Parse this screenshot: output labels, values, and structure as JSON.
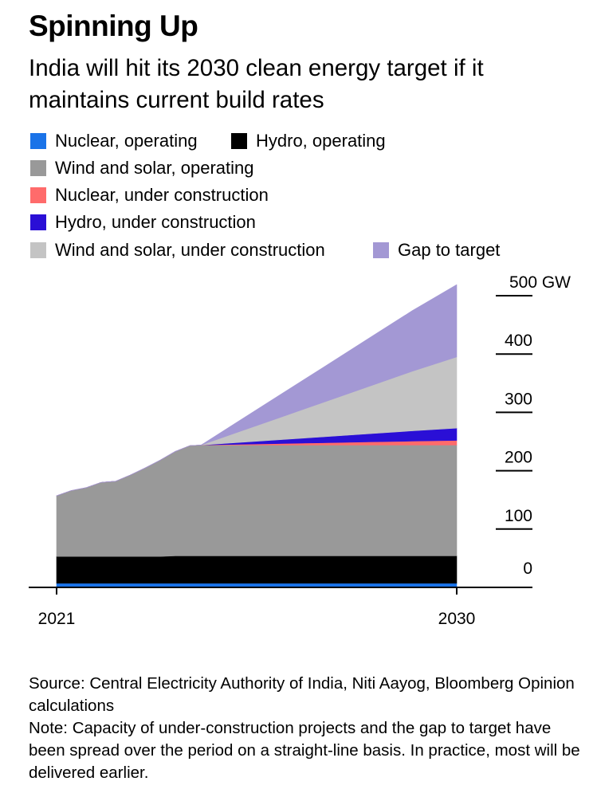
{
  "title": "Spinning Up",
  "subtitle": "India will hit its 2030 clean energy target if it maintains current build rates",
  "colors": {
    "nuclear_operating": "#1a73e8",
    "hydro_operating": "#000000",
    "wind_solar_operating": "#999999",
    "nuclear_under_construction": "#ff6b6b",
    "hydro_under_construction": "#2a0fd6",
    "wind_solar_under_construction": "#c4c4c4",
    "gap_to_target": "#a398d4"
  },
  "legend": [
    {
      "label": "Nuclear, operating",
      "color": "#1a73e8"
    },
    {
      "label": "Hydro, operating",
      "color": "#000000"
    },
    {
      "label": "Wind and solar, operating",
      "color": "#999999"
    },
    {
      "label": "Nuclear, under construction",
      "color": "#ff6b6b"
    },
    {
      "label": "Hydro, under construction",
      "color": "#2a0fd6"
    },
    {
      "label": "Wind and solar, under construction",
      "color": "#c4c4c4"
    },
    {
      "label": "Gap to target",
      "color": "#a398d4"
    }
  ],
  "chart_data": {
    "type": "area",
    "stacked": true,
    "title": "Spinning Up",
    "subtitle": "India will hit its 2030 clean energy target if it maintains current build rates",
    "x": [
      2021.0,
      2021.33,
      2021.67,
      2022.0,
      2022.33,
      2022.67,
      2023.0,
      2023.33,
      2023.67,
      2024.0,
      2024.25,
      2025,
      2026,
      2027,
      2028,
      2029,
      2030
    ],
    "x_ticks": [
      2021,
      2030
    ],
    "x_tick_labels": [
      "2021",
      "2030"
    ],
    "ylim": [
      0,
      500
    ],
    "y_ticks": [
      0,
      100,
      200,
      300,
      400,
      500
    ],
    "y_tick_labels": [
      "0",
      "100",
      "200",
      "300",
      "400",
      "500 GW"
    ],
    "ylabel": "GW",
    "series": [
      {
        "name": "Nuclear, operating",
        "color": "#1a73e8",
        "values": [
          7,
          7,
          7,
          7,
          7,
          7,
          7,
          7,
          7,
          7,
          7,
          7,
          7,
          7,
          7,
          7,
          7
        ]
      },
      {
        "name": "Hydro, operating",
        "color": "#000000",
        "values": [
          46,
          46,
          46,
          46,
          46,
          46,
          46,
          46,
          47,
          47,
          47,
          47,
          47,
          47,
          47,
          47,
          47
        ]
      },
      {
        "name": "Wind and solar, operating",
        "color": "#999999",
        "values": [
          104,
          113,
          118,
          127,
          129,
          140,
          152,
          165,
          179,
          189,
          190,
          190,
          190,
          190,
          190,
          190,
          190
        ]
      },
      {
        "name": "Nuclear, under construction",
        "color": "#ff6b6b",
        "values": [
          0,
          0,
          0,
          0,
          0,
          0,
          0,
          0,
          0,
          0,
          0,
          1.1,
          2.5,
          3.9,
          5.3,
          6.7,
          8
        ]
      },
      {
        "name": "Hydro, under construction",
        "color": "#2a0fd6",
        "values": [
          0,
          0,
          0,
          0,
          0,
          0,
          0,
          0,
          0,
          0,
          0,
          2.8,
          6.5,
          10.2,
          13.9,
          17.6,
          21
        ]
      },
      {
        "name": "Wind and solar, under construction",
        "color": "#c4c4c4",
        "values": [
          0,
          0,
          0,
          0,
          0,
          0,
          0,
          0,
          0,
          0,
          0,
          16.1,
          37.6,
          59.1,
          80.6,
          102.1,
          122
        ]
      },
      {
        "name": "Gap to target",
        "color": "#a398d4",
        "values": [
          0,
          0,
          0,
          0,
          0,
          0,
          0,
          0,
          0,
          0,
          0,
          16.4,
          38.3,
          60.1,
          82.0,
          103.9,
          124
        ]
      }
    ]
  },
  "source": "Source: Central Electricity Authority of India, Niti Aayog, Bloomberg Opinion calculations",
  "note": "Note: Capacity of under-construction projects and the gap to target have been spread over the period on a straight-line basis. In practice, most will be delivered earlier."
}
